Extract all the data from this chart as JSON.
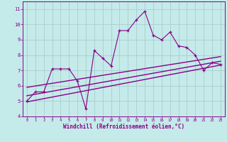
{
  "title": "",
  "xlabel": "Windchill (Refroidissement éolien,°C)",
  "ylabel": "",
  "xlim": [
    -0.5,
    23.5
  ],
  "ylim": [
    4,
    11.5
  ],
  "yticks": [
    4,
    5,
    6,
    7,
    8,
    9,
    10,
    11
  ],
  "xticks": [
    0,
    1,
    2,
    3,
    4,
    5,
    6,
    7,
    8,
    9,
    10,
    11,
    12,
    13,
    14,
    15,
    16,
    17,
    18,
    19,
    20,
    21,
    22,
    23
  ],
  "bg_color": "#c5eaea",
  "grid_color": "#aacccc",
  "line_color": "#880088",
  "data_x": [
    0,
    1,
    2,
    3,
    4,
    5,
    6,
    7,
    8,
    9,
    10,
    11,
    12,
    13,
    14,
    15,
    16,
    17,
    18,
    19,
    20,
    21,
    22,
    23
  ],
  "data_y": [
    5.0,
    5.6,
    5.6,
    7.1,
    7.1,
    7.1,
    6.3,
    4.5,
    8.3,
    7.8,
    7.3,
    9.6,
    9.6,
    10.3,
    10.85,
    9.3,
    9.0,
    9.5,
    8.6,
    8.5,
    8.0,
    7.0,
    7.5,
    7.4
  ],
  "trend1_x": [
    0,
    23
  ],
  "trend1_y": [
    5.9,
    7.9
  ],
  "trend2_x": [
    0,
    23
  ],
  "trend2_y": [
    5.35,
    7.6
  ],
  "trend3_x": [
    0,
    23
  ],
  "trend3_y": [
    4.95,
    7.35
  ]
}
